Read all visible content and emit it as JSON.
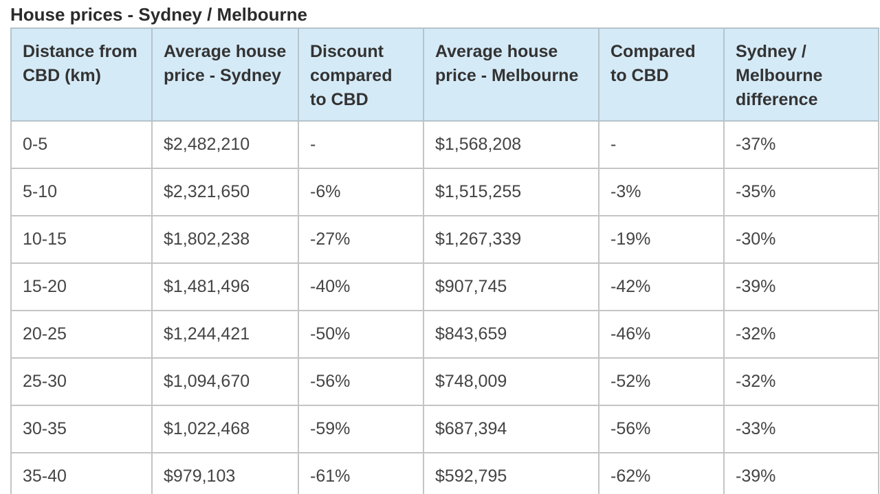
{
  "title": "House prices - Sydney / Melbourne",
  "colors": {
    "header_background": "#d5eaf7",
    "border": "#c4c4c4",
    "text": "#333333"
  },
  "table": {
    "headers": [
      "Distance from CBD (km)",
      "Average house price - Sydney",
      "Discount compared to CBD",
      "Average house price - Melbourne",
      "Compared to CBD",
      "Sydney / Melbourne difference"
    ],
    "rows": [
      [
        "0-5",
        "$2,482,210",
        "-",
        "$1,568,208",
        "-",
        "-37%"
      ],
      [
        "5-10",
        "$2,321,650",
        "-6%",
        "$1,515,255",
        "-3%",
        "-35%"
      ],
      [
        "10-15",
        "$1,802,238",
        "-27%",
        "$1,267,339",
        "-19%",
        "-30%"
      ],
      [
        "15-20",
        "$1,481,496",
        "-40%",
        "$907,745",
        "-42%",
        "-39%"
      ],
      [
        "20-25",
        "$1,244,421",
        "-50%",
        "$843,659",
        "-46%",
        "-32%"
      ],
      [
        "25-30",
        "$1,094,670",
        "-56%",
        "$748,009",
        "-52%",
        "-32%"
      ],
      [
        "30-35",
        "$1,022,468",
        "-59%",
        "$687,394",
        "-56%",
        "-33%"
      ],
      [
        "35-40",
        "$979,103",
        "-61%",
        "$592,795",
        "-62%",
        "-39%"
      ]
    ]
  }
}
